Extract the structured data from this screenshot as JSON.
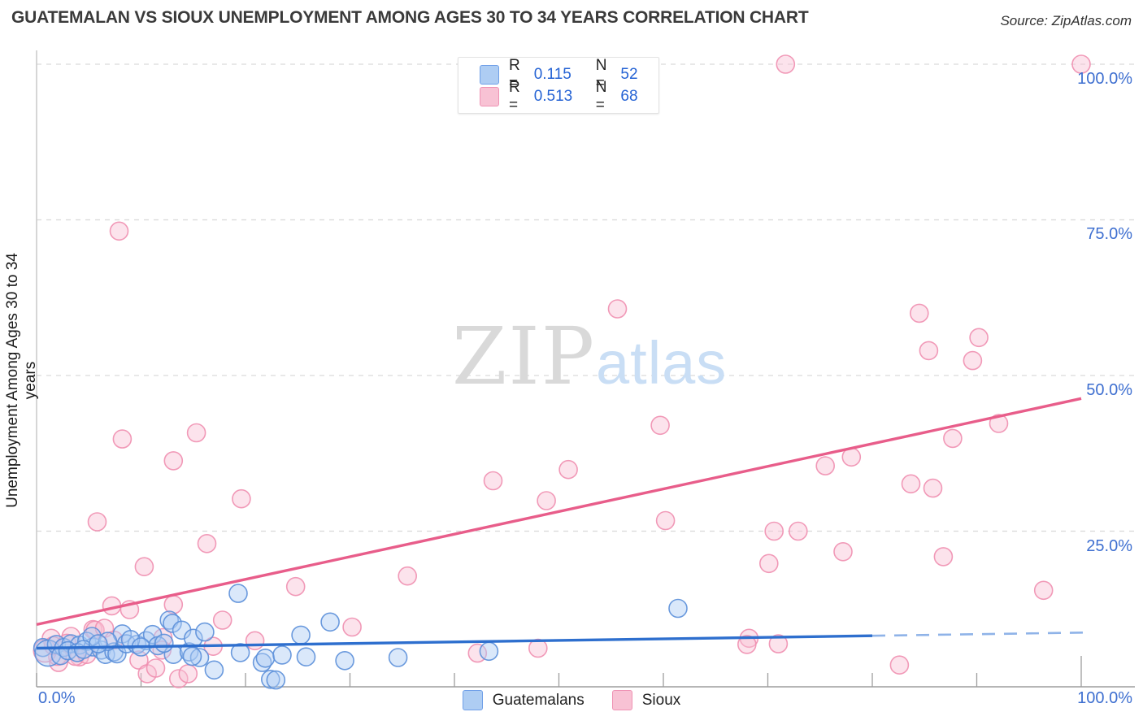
{
  "page": {
    "title": "GUATEMALAN VS SIOUX UNEMPLOYMENT AMONG AGES 30 TO 34 YEARS CORRELATION CHART",
    "source": "Source: ZipAtlas.com"
  },
  "watermark": {
    "zip": "ZIP",
    "atlas": "atlas"
  },
  "y_axis": {
    "label": "Unemployment Among Ages 30 to 34 years",
    "ticks": [
      {
        "label": "100.0%",
        "value": 100
      },
      {
        "label": "75.0%",
        "value": 75
      },
      {
        "label": "50.0%",
        "value": 50
      },
      {
        "label": "25.0%",
        "value": 25
      }
    ]
  },
  "x_axis": {
    "left_label": "0.0%",
    "right_label": "100.0%",
    "tick_step_percent": 10
  },
  "legend_box": {
    "rows": [
      {
        "series": "Guatemalans",
        "r_label": "R =",
        "r_value": "0.115",
        "n_label": "N =",
        "n_value": "52"
      },
      {
        "series": "Sioux",
        "r_label": "R =",
        "r_value": "0.513",
        "n_label": "N =",
        "n_value": "68"
      }
    ]
  },
  "bottom_legend": {
    "items": [
      {
        "label": "Guatemalans"
      },
      {
        "label": "Sioux"
      }
    ]
  },
  "colors": {
    "blue_fill": "#aecdf3",
    "blue_stroke": "#5b8fd9",
    "pink_fill": "#f8c2d4",
    "pink_stroke": "#ef8fb0",
    "blue_trend": "#2e6fce",
    "blue_trend_dash": "#8fb3e8",
    "pink_trend": "#e85d8a",
    "gridline": "#d9d9d9",
    "axis_bottom": "#9e9e9e",
    "axis_left": "#c9c9c9",
    "tick_label": "#3e6fd0",
    "value_text": "#2563d4"
  },
  "chart_data": {
    "type": "scatter",
    "title": "GUATEMALAN VS SIOUX UNEMPLOYMENT AMONG AGES 30 TO 34 YEARS CORRELATION CHART",
    "xlabel": "",
    "ylabel": "Unemployment Among Ages 30 to 34 years",
    "xlim": [
      0,
      100
    ],
    "ylim": [
      0,
      100
    ],
    "x_units": "percent",
    "y_units": "percent",
    "grid": "horizontal-dashed",
    "legend_position": "top-center",
    "series": [
      {
        "name": "Sioux",
        "R": 0.513,
        "N": 68,
        "trend": {
          "x0": 0,
          "y0": 10.0,
          "x1": 100,
          "y1": 46.3
        },
        "points": [
          [
            71.7,
            100
          ],
          [
            100,
            100
          ],
          [
            7.9,
            73.2
          ],
          [
            55.6,
            60.7
          ],
          [
            84.5,
            60.0
          ],
          [
            90.2,
            56.1
          ],
          [
            85.4,
            54.0
          ],
          [
            89.6,
            52.4
          ],
          [
            92.1,
            42.3
          ],
          [
            87.7,
            39.9
          ],
          [
            59.7,
            42.0
          ],
          [
            8.2,
            39.8
          ],
          [
            15.3,
            40.8
          ],
          [
            13.1,
            36.3
          ],
          [
            50.9,
            34.9
          ],
          [
            75.5,
            35.5
          ],
          [
            78.0,
            36.9
          ],
          [
            48.8,
            29.9
          ],
          [
            43.7,
            33.1
          ],
          [
            83.7,
            32.6
          ],
          [
            85.8,
            31.9
          ],
          [
            19.6,
            30.2
          ],
          [
            5.8,
            26.5
          ],
          [
            60.2,
            26.7
          ],
          [
            70.6,
            25.0
          ],
          [
            72.9,
            25.0
          ],
          [
            16.3,
            23.0
          ],
          [
            86.8,
            20.9
          ],
          [
            77.2,
            21.7
          ],
          [
            70.1,
            19.8
          ],
          [
            10.3,
            19.3
          ],
          [
            35.5,
            17.8
          ],
          [
            96.4,
            15.5
          ],
          [
            24.8,
            16.1
          ],
          [
            13.1,
            13.2
          ],
          [
            7.2,
            13.0
          ],
          [
            8.9,
            12.4
          ],
          [
            17.8,
            10.7
          ],
          [
            30.2,
            9.6
          ],
          [
            42.2,
            5.4
          ],
          [
            48.0,
            6.2
          ],
          [
            68.2,
            7.8
          ],
          [
            68.0,
            6.8
          ],
          [
            71.0,
            6.9
          ],
          [
            20.9,
            7.4
          ],
          [
            12.1,
            7.9
          ],
          [
            82.6,
            3.5
          ],
          [
            5.4,
            9.2
          ],
          [
            2.1,
            3.9
          ],
          [
            4.1,
            4.8
          ],
          [
            9.8,
            4.3
          ],
          [
            10.6,
            2.1
          ],
          [
            11.4,
            3.0
          ],
          [
            13.6,
            1.3
          ],
          [
            14.5,
            2.1
          ],
          [
            1.4,
            7.8
          ],
          [
            3.3,
            8.1
          ],
          [
            5.6,
            9.1
          ],
          [
            6.5,
            9.4
          ],
          [
            7.4,
            7.5
          ],
          [
            2.0,
            4.9
          ],
          [
            3.7,
            4.9
          ],
          [
            4.8,
            5.2
          ],
          [
            0.8,
            5.8,
            14
          ],
          [
            1.6,
            6.6
          ],
          [
            2.9,
            7.0
          ],
          [
            12.0,
            5.9
          ],
          [
            16.9,
            6.5
          ]
        ]
      },
      {
        "name": "Guatemalans",
        "R": 0.115,
        "N": 52,
        "trend": {
          "x0": 0,
          "y0": 6.2,
          "x1": 100,
          "y1": 8.7,
          "dash_from": 80
        },
        "points": [
          [
            0.6,
            6.3
          ],
          [
            1.1,
            5.4,
            16
          ],
          [
            1.9,
            6.8
          ],
          [
            2.6,
            6.3
          ],
          [
            3.3,
            6.9
          ],
          [
            4.1,
            6.7
          ],
          [
            4.8,
            7.3
          ],
          [
            5.4,
            6.4
          ],
          [
            6.2,
            5.9
          ],
          [
            6.6,
            5.2
          ],
          [
            7.4,
            5.6
          ],
          [
            7.7,
            5.3
          ],
          [
            8.2,
            8.5
          ],
          [
            8.6,
            6.9
          ],
          [
            9.6,
            6.8
          ],
          [
            10.5,
            7.4
          ],
          [
            11.1,
            8.4
          ],
          [
            5.3,
            8.1
          ],
          [
            6.8,
            7.3
          ],
          [
            12.7,
            10.7
          ],
          [
            13.0,
            10.2
          ],
          [
            13.1,
            5.2
          ],
          [
            13.9,
            9.1
          ],
          [
            14.6,
            5.6
          ],
          [
            15.0,
            7.8
          ],
          [
            15.6,
            4.7
          ],
          [
            16.1,
            8.8
          ],
          [
            14.9,
            4.9
          ],
          [
            17.0,
            2.7
          ],
          [
            19.5,
            5.5
          ],
          [
            19.3,
            15.0
          ],
          [
            21.6,
            3.9
          ],
          [
            21.9,
            4.6
          ],
          [
            22.4,
            1.2
          ],
          [
            22.9,
            1.1
          ],
          [
            23.5,
            5.1
          ],
          [
            25.3,
            8.3
          ],
          [
            25.8,
            4.8
          ],
          [
            28.1,
            10.4
          ],
          [
            29.5,
            4.2
          ],
          [
            34.6,
            4.7
          ],
          [
            43.3,
            5.7
          ],
          [
            61.4,
            12.6
          ],
          [
            2.3,
            5.0
          ],
          [
            3.0,
            5.8
          ],
          [
            3.9,
            5.5
          ],
          [
            4.5,
            6.0
          ],
          [
            5.9,
            6.9
          ],
          [
            9.0,
            7.6
          ],
          [
            10.0,
            6.4
          ],
          [
            11.6,
            6.6
          ],
          [
            12.2,
            7.0
          ]
        ]
      }
    ]
  }
}
